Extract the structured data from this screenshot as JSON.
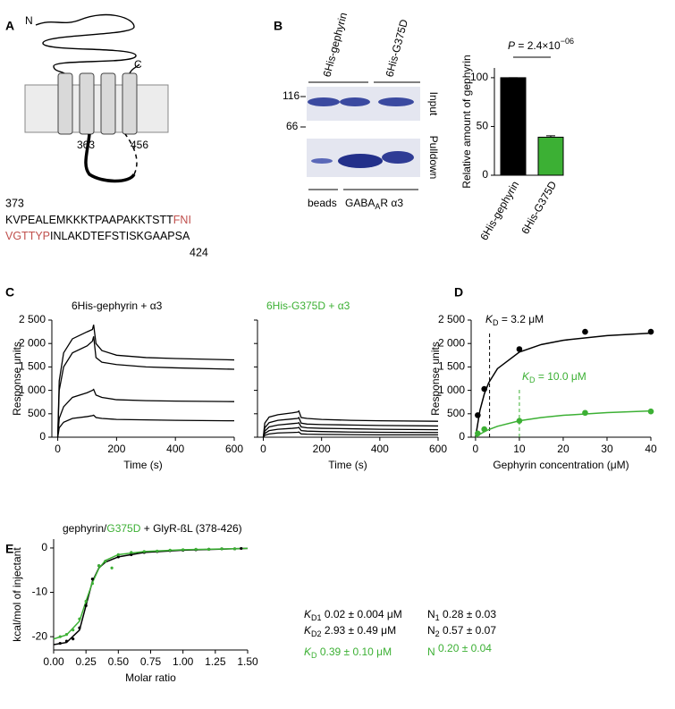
{
  "panel_labels": [
    "A",
    "B",
    "C",
    "D",
    "E"
  ],
  "panel_a": {
    "n_term": "N",
    "c_term": "C",
    "pos_left": "363",
    "pos_right": "456",
    "seq_start": "373",
    "seq_end": "424",
    "seq_line1": "KVPEALEMKKKTPAAPAKKTSTT",
    "seq_line1_red": "FNI",
    "seq_line2_red": "VGTTYP",
    "seq_line2": "INLAKDTEFSTISKGAAPSA"
  },
  "panel_b_gel": {
    "lane_left": "6His-gephyrin",
    "lane_right": "6His-G375D",
    "marker_high": "116",
    "marker_low": "66",
    "row_top": "Input",
    "row_bottom": "Pulldown",
    "bottom_left": "beads",
    "bottom_right_main": "GABA",
    "bottom_right_sub": "A",
    "bottom_right_rest": "R α3"
  },
  "chart_data": [
    {
      "type": "bar",
      "ylabel": "Relative amount of gephyrin",
      "categories": [
        "6His-gephyrin",
        "6His-G375D"
      ],
      "values": [
        100,
        39
      ],
      "errors": [
        0,
        1.5
      ],
      "colors": [
        "#000000",
        "#3cb034"
      ],
      "ylim": [
        0,
        110
      ],
      "yticks": [
        0,
        50,
        100
      ],
      "annotation": {
        "p": "P",
        "main": " = 2.4×10",
        "exp": "−06"
      }
    },
    {
      "type": "line",
      "title": "6His-gephyrin + α3",
      "xlabel": "Time (s)",
      "ylabel": "Response units",
      "x": [
        0,
        5,
        20,
        50,
        100,
        118,
        122,
        130,
        150,
        200,
        300,
        400,
        600
      ],
      "series": [
        {
          "color": "#000000",
          "values": [
            0,
            1200,
            1800,
            2100,
            2250,
            2300,
            2400,
            2000,
            1850,
            1750,
            1700,
            1680,
            1650
          ]
        },
        {
          "color": "#000000",
          "values": [
            0,
            1000,
            1500,
            1800,
            1950,
            2050,
            2150,
            1700,
            1600,
            1550,
            1500,
            1480,
            1450
          ]
        },
        {
          "color": "#000000",
          "values": [
            0,
            400,
            650,
            850,
            950,
            1000,
            1020,
            900,
            850,
            800,
            780,
            770,
            760
          ]
        },
        {
          "color": "#000000",
          "values": [
            0,
            200,
            320,
            400,
            440,
            460,
            470,
            420,
            400,
            380,
            370,
            360,
            350
          ]
        }
      ],
      "xlim": [
        -20,
        600
      ],
      "xticks": [
        0,
        200,
        400,
        600
      ],
      "ylim": [
        0,
        2500
      ],
      "yticks": [
        0,
        500,
        {
          "value": 1000,
          "label": "1 000"
        },
        {
          "value": 1500,
          "label": "1 500"
        },
        {
          "value": 2000,
          "label": "2 000"
        },
        {
          "value": 2500,
          "label": "2 500"
        }
      ]
    },
    {
      "type": "line",
      "title": "6His-G375D + α3",
      "xlabel": "Time (s)",
      "x": [
        0,
        5,
        20,
        50,
        100,
        118,
        122,
        130,
        150,
        200,
        300,
        400,
        600
      ],
      "series": [
        {
          "color": "#000000",
          "values": [
            0,
            300,
            430,
            480,
            520,
            540,
            560,
            420,
            400,
            380,
            360,
            350,
            340
          ]
        },
        {
          "color": "#000000",
          "values": [
            0,
            200,
            310,
            360,
            390,
            400,
            420,
            300,
            280,
            270,
            260,
            250,
            240
          ]
        },
        {
          "color": "#000000",
          "values": [
            0,
            130,
            220,
            260,
            290,
            300,
            310,
            220,
            200,
            190,
            180,
            170,
            160
          ]
        },
        {
          "color": "#000000",
          "values": [
            0,
            80,
            140,
            170,
            190,
            200,
            210,
            140,
            130,
            120,
            110,
            105,
            100
          ]
        },
        {
          "color": "#000000",
          "values": [
            0,
            40,
            70,
            90,
            100,
            105,
            110,
            70,
            65,
            60,
            55,
            50,
            50
          ]
        }
      ],
      "xlim": [
        -20,
        600
      ],
      "xticks": [
        0,
        200,
        400,
        600
      ],
      "ylim": [
        0,
        2500
      ],
      "yticks": [
        0,
        500,
        1000,
        1500,
        2000,
        2500
      ]
    },
    {
      "type": "scatter",
      "xlabel": "Gephyrin concentration (μM)",
      "ylabel": "Response units",
      "series": [
        {
          "color": "#000000",
          "x": [
            0.5,
            2,
            10,
            25,
            40
          ],
          "values": [
            470,
            1030,
            1880,
            2250,
            2250
          ]
        },
        {
          "color": "#3cb034",
          "x": [
            0.5,
            2,
            10,
            25,
            40
          ],
          "values": [
            80,
            170,
            350,
            520,
            550
          ]
        }
      ],
      "fit_series": [
        {
          "color": "#000000",
          "x": [
            0,
            1,
            2,
            3,
            5,
            10,
            15,
            20,
            30,
            40
          ],
          "values": [
            0,
            571,
            923,
            1161,
            1463,
            1818,
            1978,
            2069,
            2169,
            2222
          ]
        },
        {
          "color": "#3cb034",
          "x": [
            0,
            1,
            2,
            3,
            5,
            10,
            15,
            20,
            30,
            40
          ],
          "values": [
            0,
            64,
            117,
            162,
            233,
            350,
            420,
            467,
            525,
            560
          ]
        }
      ],
      "kd_lines": [
        {
          "x": 3.2,
          "color": "#000000"
        },
        {
          "x": 10,
          "color": "#3cb034"
        }
      ],
      "kd_labels": [
        {
          "k": "K",
          "sub": "D",
          "rest": " = 3.2 μM"
        },
        {
          "k": "K",
          "sub": "D",
          "rest": " = 10.0 μM"
        }
      ],
      "xlim": [
        -1,
        40
      ],
      "xticks": [
        0,
        10,
        20,
        30,
        40
      ],
      "ylim": [
        0,
        2500
      ],
      "yticks": [
        0,
        500,
        {
          "value": 1000,
          "label": "1 000"
        },
        {
          "value": 1500,
          "label": "1 500"
        },
        {
          "value": 2000,
          "label": "2 000"
        },
        {
          "value": 2500,
          "label": "2 500"
        }
      ]
    },
    {
      "type": "scatter",
      "xlabel": "Molar ratio",
      "ylabel": "kcal/mol of injectant",
      "title_parts": {
        "a": "gephyrin/",
        "b": "G375D",
        "c": " + GlyR-ßL (378-426)"
      },
      "series": [
        {
          "color": "#000000",
          "x": [
            0.05,
            0.1,
            0.15,
            0.2,
            0.25,
            0.3,
            0.35,
            0.4,
            0.5,
            0.6,
            0.7,
            0.8,
            0.9,
            1.0,
            1.1,
            1.2,
            1.3,
            1.4,
            1.45
          ],
          "values": [
            -21.5,
            -21,
            -20.5,
            -18,
            -13,
            -7,
            -4,
            -3,
            -2,
            -1.5,
            -1,
            -0.8,
            -0.6,
            -0.5,
            -0.4,
            -0.3,
            -0.2,
            -0.2,
            -0.1
          ]
        },
        {
          "color": "#3cb034",
          "x": [
            0.05,
            0.1,
            0.15,
            0.2,
            0.25,
            0.3,
            0.35,
            0.4,
            0.45,
            0.5,
            0.6,
            0.7,
            0.8,
            0.9,
            1.0,
            1.1,
            1.2,
            1.3,
            1.4
          ],
          "values": [
            -20,
            -19.5,
            -18.5,
            -16,
            -12,
            -8,
            -4,
            -3,
            -4.5,
            -1.5,
            -1,
            -0.8,
            -0.7,
            -0.5,
            -0.4,
            -0.3,
            -0.3,
            -0.2,
            -0.2
          ]
        }
      ],
      "fit_series": [
        {
          "color": "#000000",
          "x": [
            0,
            0.1,
            0.2,
            0.25,
            0.3,
            0.35,
            0.4,
            0.5,
            0.7,
            1.0,
            1.5
          ],
          "values": [
            -21.8,
            -21.3,
            -18.5,
            -13,
            -7.5,
            -4.5,
            -3.2,
            -2,
            -1,
            -0.5,
            -0.1
          ]
        },
        {
          "color": "#3cb034",
          "x": [
            0,
            0.1,
            0.2,
            0.25,
            0.3,
            0.35,
            0.4,
            0.5,
            0.7,
            1.0,
            1.5
          ],
          "values": [
            -20.5,
            -19.6,
            -16.5,
            -12,
            -7.8,
            -4.6,
            -2.8,
            -1.5,
            -0.8,
            -0.4,
            -0.1
          ]
        }
      ],
      "xlim": [
        0,
        1.5
      ],
      "xticks": [
        {
          "value": 0,
          "label": "0.00"
        },
        {
          "value": 0.25,
          "label": "0.25"
        },
        {
          "value": 0.5,
          "label": "0.50"
        },
        {
          "value": 0.75,
          "label": "0.75"
        },
        {
          "value": 1,
          "label": "1.00"
        },
        {
          "value": 1.25,
          "label": "1.25"
        },
        {
          "value": 1.5,
          "label": "1.50"
        }
      ],
      "ylim": [
        -23,
        2
      ],
      "yticks": [
        -20,
        -10,
        0
      ]
    }
  ],
  "e_table": [
    {
      "k": "K",
      "ksub": "D1",
      "kval": " 0.02 ± 0.004 μM",
      "n": "N",
      "nsub": "1",
      "nval": " 0.28 ± 0.03"
    },
    {
      "k": "K",
      "ksub": "D2",
      "kval": " 2.93 ± 0.49  μM",
      "n": "N",
      "nsub": "2",
      "nval": " 0.57 ± 0.07"
    },
    {
      "k": "K",
      "ksub": "D",
      "kval": " 0.39 ± 0.10  μM",
      "n": "N",
      "nsub": "",
      "nval": "  0.20 ± 0.04"
    }
  ]
}
